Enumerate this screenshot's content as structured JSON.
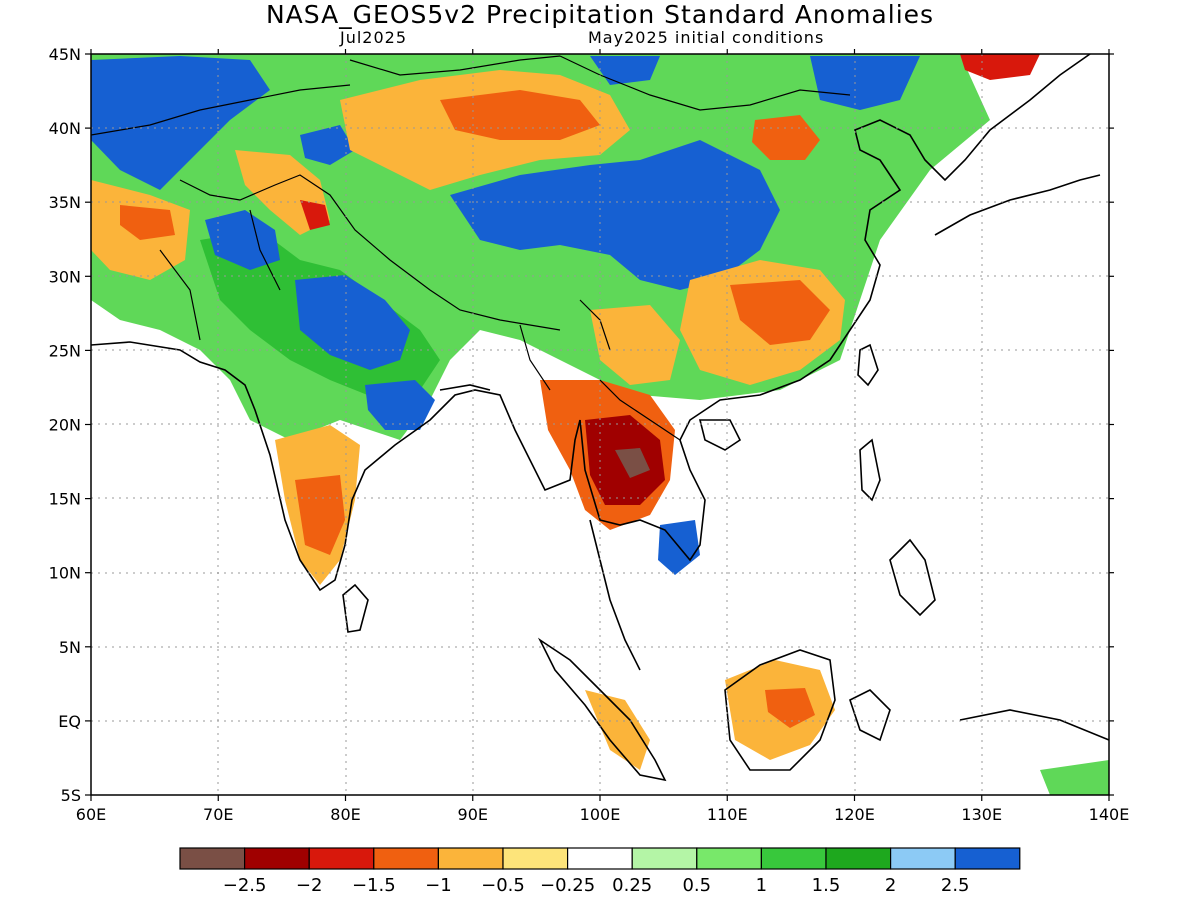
{
  "title": "NASA_GEOS5v2 Precipitation Standard Anomalies",
  "subtitle_left": "Jul2025",
  "subtitle_right": "May2025 initial conditions",
  "lon_labels": [
    "60E",
    "70E",
    "80E",
    "90E",
    "100E",
    "110E",
    "120E",
    "130E",
    "140E"
  ],
  "lat_labels": [
    "45N",
    "40N",
    "35N",
    "30N",
    "25N",
    "20N",
    "15N",
    "10N",
    "5N",
    "EQ",
    "5S"
  ],
  "colorbar": {
    "colors": [
      "#7a4f45",
      "#a00000",
      "#d8180c",
      "#f06010",
      "#fbb43a",
      "#fde47a",
      "#ffffff",
      "#b4f5a6",
      "#78e86a",
      "#38c83c",
      "#1ea81e",
      "#8ccaf5",
      "#1660d2"
    ],
    "tick_labels": [
      "−2.5",
      "−2",
      "−1.5",
      "−1",
      "−0.5",
      "−0.25",
      "0.25",
      "0.5",
      "1",
      "1.5",
      "2",
      "2.5"
    ]
  },
  "palette": {
    "dry_strong": "#a00000",
    "dry": "#f06010",
    "dry_weak": "#fbb43a",
    "neutral": "#ffffff",
    "wet_weak": "#78e86a",
    "wet": "#38c83c",
    "wet_strong": "#1660d2"
  }
}
